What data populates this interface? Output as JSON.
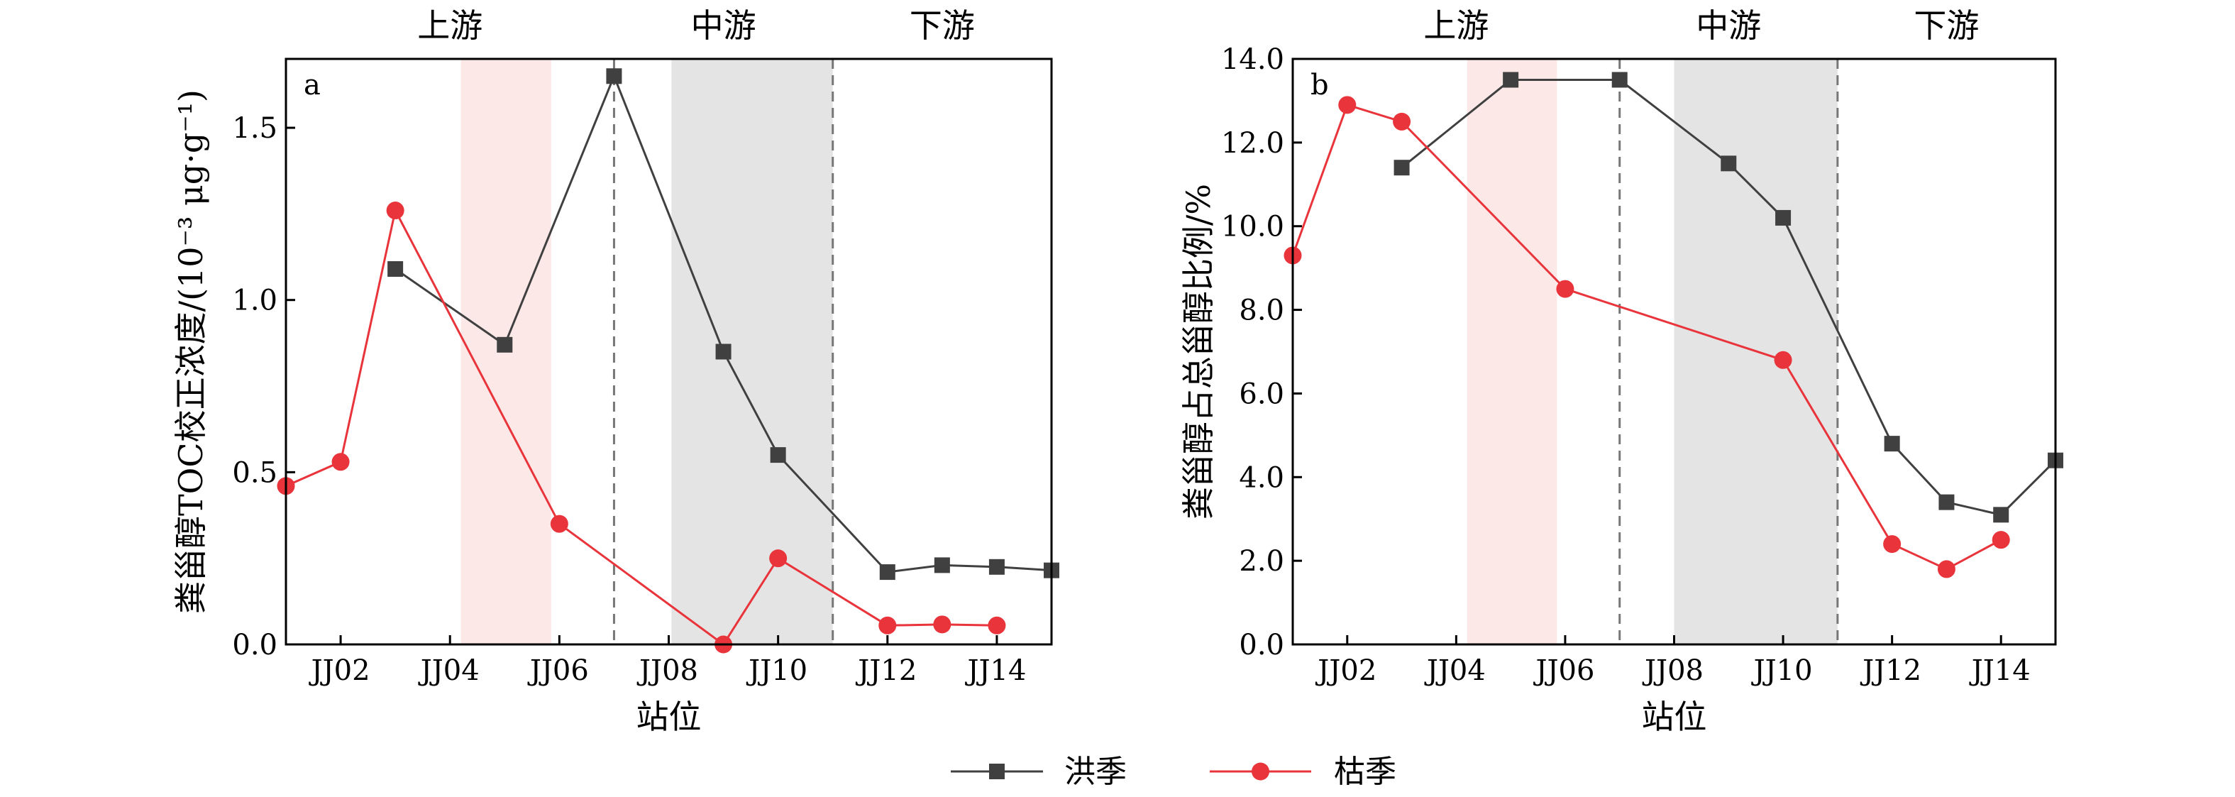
{
  "legend": [
    {
      "name": "洪季",
      "color": "#404040",
      "marker": "square"
    },
    {
      "name": "枯季",
      "color": "#e8343a",
      "marker": "circle"
    }
  ],
  "chart_data": [
    {
      "type": "line",
      "panel": "a",
      "xlabel": "站位",
      "ylabel": "粪甾醇TOC校正浓度/(10⁻³ μg·g⁻¹)",
      "xlim": [
        1,
        15
      ],
      "ylim": [
        0,
        1.7
      ],
      "x_ticks": [
        2,
        4,
        6,
        8,
        10,
        12,
        14
      ],
      "x_tick_labels": [
        "JJ02",
        "JJ04",
        "JJ06",
        "JJ08",
        "JJ10",
        "JJ12",
        "JJ14"
      ],
      "y_ticks": [
        0,
        0.5,
        1.0,
        1.5
      ],
      "y_tick_labels": [
        "0.0",
        "0.5",
        "1.0",
        "1.5"
      ],
      "regions": [
        {
          "label": "上游",
          "from": 1,
          "to": 7
        },
        {
          "label": "中游",
          "from": 7,
          "to": 11
        },
        {
          "label": "下游",
          "from": 11,
          "to": 15
        }
      ],
      "shaded_bands": [
        {
          "from": 4.2,
          "to": 5.85,
          "color": "#fde8e8"
        },
        {
          "from": 8.05,
          "to": 11.0,
          "color": "#e4e4e4"
        }
      ],
      "dividers": [
        7,
        11
      ],
      "series": [
        {
          "name": "洪季",
          "color": "#404040",
          "marker": "square",
          "points": [
            [
              3,
              1.09
            ],
            [
              5,
              0.87
            ],
            [
              7,
              1.65
            ],
            [
              9,
              0.85
            ],
            [
              10,
              0.55
            ],
            [
              12,
              0.21
            ],
            [
              13,
              0.23
            ],
            [
              14,
              0.225
            ],
            [
              15,
              0.215
            ]
          ]
        },
        {
          "name": "枯季",
          "color": "#e8343a",
          "marker": "circle",
          "points": [
            [
              1,
              0.46
            ],
            [
              2,
              0.53
            ],
            [
              3,
              1.26
            ],
            [
              6,
              0.35
            ],
            [
              9,
              0.0
            ],
            [
              10,
              0.25
            ],
            [
              12,
              0.055
            ],
            [
              13,
              0.058
            ],
            [
              14,
              0.055
            ]
          ]
        }
      ]
    },
    {
      "type": "line",
      "panel": "b",
      "xlabel": "站位",
      "ylabel": "粪甾醇占总甾醇比例/%",
      "xlim": [
        1,
        15
      ],
      "ylim": [
        0,
        14
      ],
      "x_ticks": [
        2,
        4,
        6,
        8,
        10,
        12,
        14
      ],
      "x_tick_labels": [
        "JJ02",
        "JJ04",
        "JJ06",
        "JJ08",
        "JJ10",
        "JJ12",
        "JJ14"
      ],
      "y_ticks": [
        0,
        2,
        4,
        6,
        8,
        10,
        12,
        14
      ],
      "y_tick_labels": [
        "0.0",
        "2.0",
        "4.0",
        "6.0",
        "8.0",
        "10.0",
        "12.0",
        "14.0"
      ],
      "regions": [
        {
          "label": "上游",
          "from": 1,
          "to": 7
        },
        {
          "label": "中游",
          "from": 7,
          "to": 11
        },
        {
          "label": "下游",
          "from": 11,
          "to": 15
        }
      ],
      "shaded_bands": [
        {
          "from": 4.2,
          "to": 5.85,
          "color": "#fde8e8"
        },
        {
          "from": 8.0,
          "to": 11.0,
          "color": "#e4e4e4"
        }
      ],
      "dividers": [
        7,
        11
      ],
      "series": [
        {
          "name": "洪季",
          "color": "#404040",
          "marker": "square",
          "points": [
            [
              3,
              11.4
            ],
            [
              5,
              13.5
            ],
            [
              7,
              13.5
            ],
            [
              9,
              11.5
            ],
            [
              10,
              10.2
            ],
            [
              12,
              4.8
            ],
            [
              13,
              3.4
            ],
            [
              14,
              3.1
            ],
            [
              15,
              4.4
            ]
          ]
        },
        {
          "name": "枯季",
          "color": "#e8343a",
          "marker": "circle",
          "points": [
            [
              1,
              9.3
            ],
            [
              2,
              12.9
            ],
            [
              3,
              12.5
            ],
            [
              6,
              8.5
            ],
            [
              10,
              6.8
            ],
            [
              12,
              2.4
            ],
            [
              13,
              1.8
            ],
            [
              14,
              2.5
            ]
          ]
        }
      ]
    }
  ]
}
